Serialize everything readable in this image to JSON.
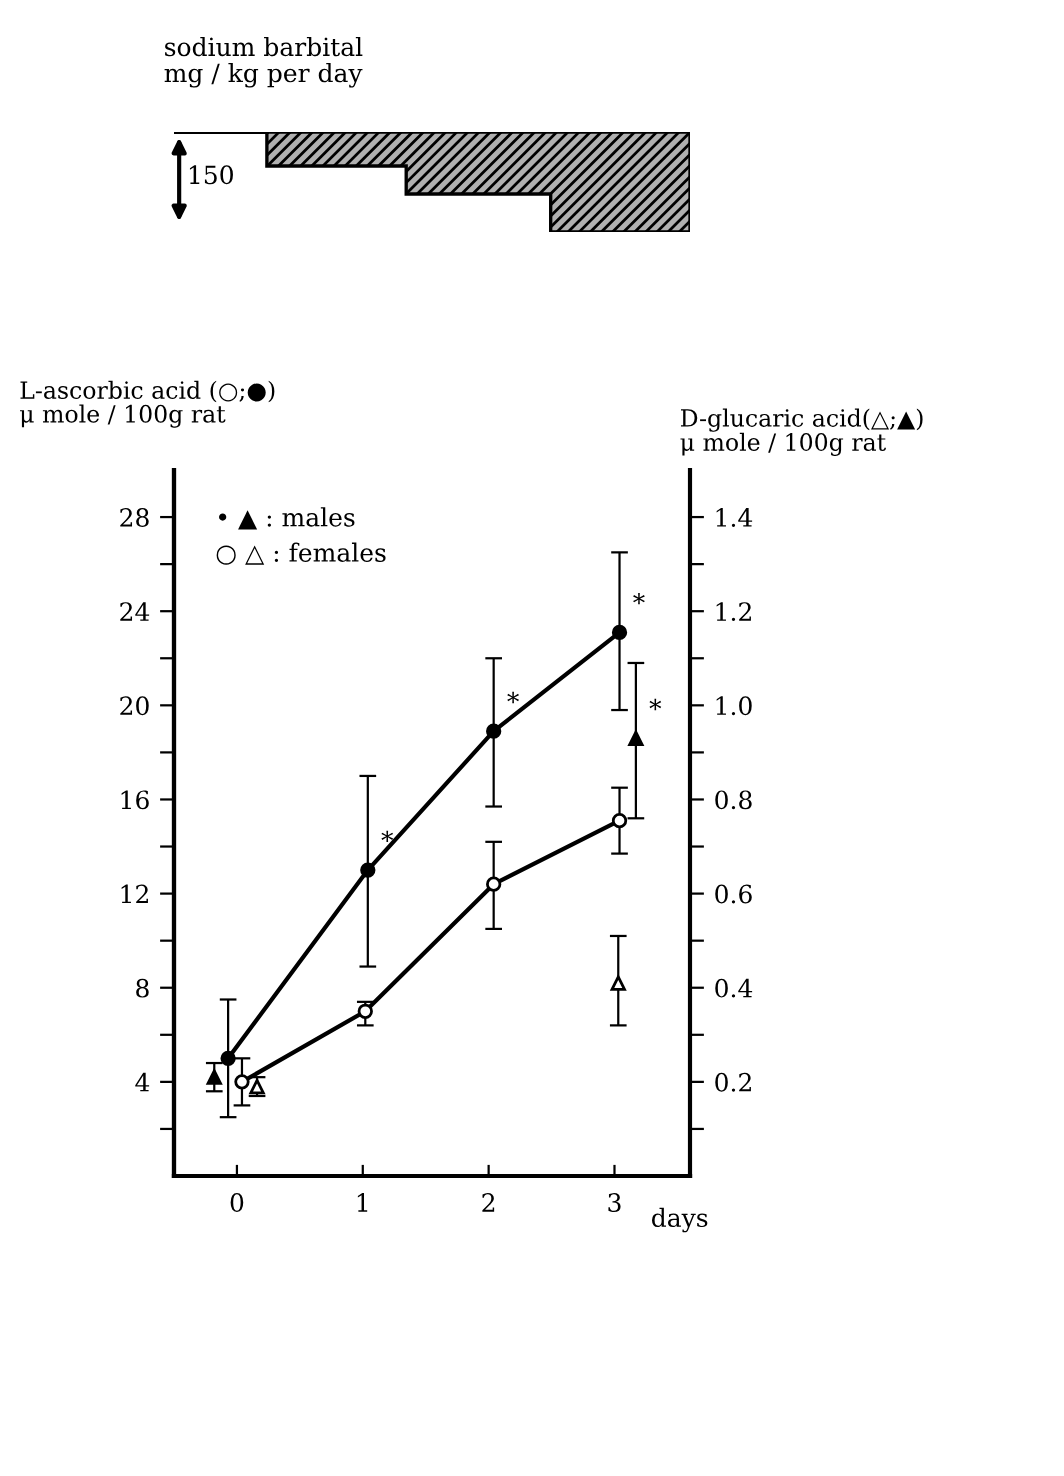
{
  "chart_data": [
    {
      "type": "other",
      "title": "sodium barbital\nmg / kg per day",
      "annotations": [
        "150"
      ]
    },
    {
      "type": "line",
      "xlabel": "days",
      "ylabel": "L-ascorbic acid (○;●)\nμ mole / 100g rat",
      "y2label": "D-glucaric acid(△;▲)\nμ mole / 100g rat",
      "xlim": [
        -0.5,
        3.6
      ],
      "xticks": [
        0,
        1,
        2,
        3
      ],
      "ylim": [
        0,
        30
      ],
      "yticks": [
        {
          "value": 2,
          "label": null
        },
        4,
        {
          "value": 6,
          "label": null
        },
        8,
        {
          "value": 10,
          "label": null
        },
        12,
        {
          "value": 14,
          "label": null
        },
        16,
        {
          "value": 18,
          "label": null
        },
        20,
        {
          "value": 22,
          "label": null
        },
        24,
        {
          "value": 26,
          "label": null
        },
        28
      ],
      "y2lim": [
        0,
        1.5
      ],
      "y2ticks": [
        {
          "value": 0.1,
          "label": null
        },
        0.2,
        {
          "value": 0.3,
          "label": null
        },
        0.4,
        {
          "value": 0.5,
          "label": null
        },
        0.6,
        {
          "value": 0.7,
          "label": null
        },
        0.8,
        {
          "value": 0.9,
          "label": null
        },
        {
          "value": 1.0,
          "label": "1.0"
        },
        {
          "value": 1.1,
          "label": null
        },
        1.2,
        {
          "value": 1.3,
          "label": null
        },
        1.4
      ],
      "grid": false,
      "legend": false,
      "series": [
        {
          "type": "line",
          "color": "#000000",
          "marker": "circle",
          "x": [
            -0.07,
            1.04,
            2.04,
            3.04
          ],
          "values": [
            5.0,
            13.0,
            18.9,
            23.1
          ],
          "errors": [
            [
              2.5,
              7.5
            ],
            [
              8.9,
              17.0
            ],
            [
              15.7,
              22.0
            ],
            [
              19.8,
              26.5
            ]
          ],
          "value_labels": [
            null,
            "*",
            "*",
            "*"
          ]
        },
        {
          "type": "line",
          "color": "#ffffff",
          "marker": "circle",
          "x": [
            0.04,
            1.02,
            2.04,
            3.04
          ],
          "values": [
            4.0,
            7.0,
            12.4,
            15.1
          ],
          "errors": [
            [
              3.0,
              5.0
            ],
            [
              6.4,
              7.4
            ],
            [
              10.5,
              14.2
            ],
            [
              13.7,
              16.5
            ]
          ]
        },
        {
          "type": "scatter",
          "axis": "y2",
          "color": "#000000",
          "marker": "triangle",
          "x": [
            -0.18,
            3.17
          ],
          "values": [
            0.21,
            0.93
          ],
          "errors": [
            [
              0.18,
              0.24
            ],
            [
              0.76,
              1.09
            ]
          ],
          "value_labels": [
            null,
            "*"
          ]
        },
        {
          "type": "scatter",
          "axis": "y2",
          "color": "#ffffff",
          "marker": "triangle",
          "x": [
            0.16,
            3.03
          ],
          "values": [
            0.19,
            0.41
          ],
          "errors": [
            [
              0.17,
              0.21
            ],
            [
              0.32,
              0.51
            ]
          ]
        }
      ],
      "annotations": [
        "• ▲ : males",
        "○ △ : females"
      ]
    }
  ]
}
